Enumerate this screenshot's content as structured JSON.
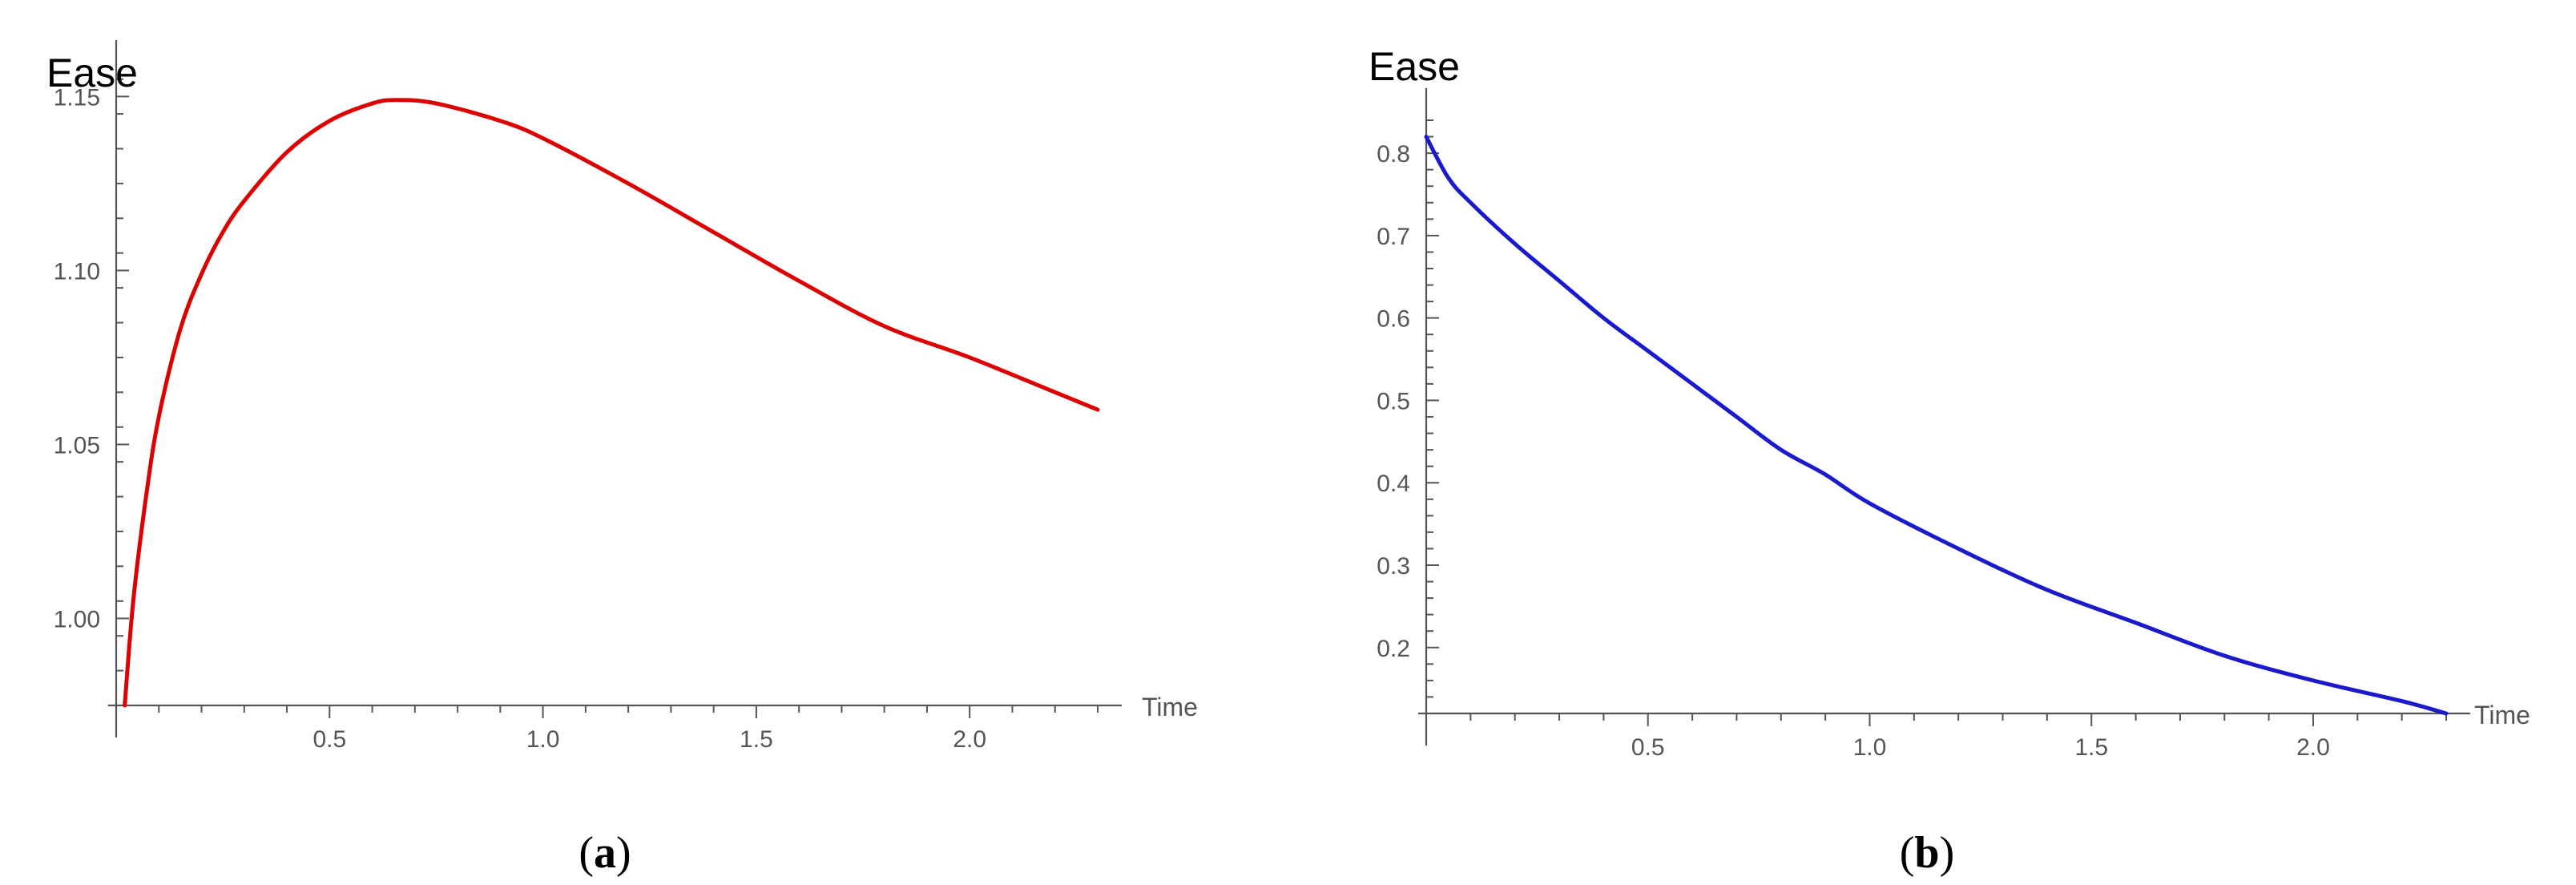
{
  "chart_data": [
    {
      "type": "line",
      "caption": "a",
      "ylabel": "Ease",
      "xlabel": "Time",
      "xlim": [
        0,
        2.3
      ],
      "ylim": [
        0.975,
        1.157
      ],
      "x_origin": 0,
      "y_origin": 0.975,
      "xticks": [
        {
          "value": 0.5,
          "label": "0.5"
        },
        {
          "value": 1.0,
          "label": "1.0"
        },
        {
          "value": 1.5,
          "label": "1.5"
        },
        {
          "value": 2.0,
          "label": "2.0"
        }
      ],
      "yticks": [
        {
          "value": 1.0,
          "label": "1.00"
        },
        {
          "value": 1.05,
          "label": "1.05"
        },
        {
          "value": 1.1,
          "label": "1.10"
        },
        {
          "value": 1.15,
          "label": "1.15"
        }
      ],
      "grid": false,
      "series": [
        {
          "color": "#dd0000",
          "x": [
            0.02,
            0.04,
            0.07,
            0.1,
            0.15,
            0.2,
            0.25,
            0.3,
            0.4,
            0.5,
            0.6,
            0.66,
            0.75,
            0.9,
            1.0,
            1.2,
            1.4,
            1.6,
            1.8,
            2.0,
            2.2,
            2.3
          ],
          "y": [
            0.975,
            1.005,
            1.035,
            1.058,
            1.083,
            1.099,
            1.111,
            1.12,
            1.134,
            1.143,
            1.148,
            1.149,
            1.148,
            1.143,
            1.138,
            1.125,
            1.111,
            1.097,
            1.084,
            1.075,
            1.065,
            1.06
          ]
        }
      ]
    },
    {
      "type": "line",
      "caption": "b",
      "ylabel": "Ease",
      "xlabel": "Time",
      "xlim": [
        0,
        2.3
      ],
      "ylim": [
        0.12,
        0.84
      ],
      "x_origin": 0,
      "y_origin": 0.12,
      "xticks": [
        {
          "value": 0.5,
          "label": "0.5"
        },
        {
          "value": 1.0,
          "label": "1.0"
        },
        {
          "value": 1.5,
          "label": "1.5"
        },
        {
          "value": 2.0,
          "label": "2.0"
        }
      ],
      "yticks": [
        {
          "value": 0.2,
          "label": "0.2"
        },
        {
          "value": 0.3,
          "label": "0.3"
        },
        {
          "value": 0.4,
          "label": "0.4"
        },
        {
          "value": 0.5,
          "label": "0.5"
        },
        {
          "value": 0.6,
          "label": "0.6"
        },
        {
          "value": 0.7,
          "label": "0.7"
        },
        {
          "value": 0.8,
          "label": "0.8"
        }
      ],
      "grid": false,
      "series": [
        {
          "color": "#1a1acc",
          "x": [
            0.0,
            0.05,
            0.1,
            0.2,
            0.3,
            0.4,
            0.5,
            0.6,
            0.7,
            0.8,
            0.9,
            1.0,
            1.2,
            1.4,
            1.6,
            1.8,
            2.0,
            2.2,
            2.3
          ],
          "y": [
            0.82,
            0.77,
            0.74,
            0.69,
            0.645,
            0.6,
            0.56,
            0.52,
            0.48,
            0.44,
            0.41,
            0.375,
            0.32,
            0.27,
            0.23,
            0.19,
            0.16,
            0.135,
            0.12
          ]
        }
      ]
    }
  ]
}
